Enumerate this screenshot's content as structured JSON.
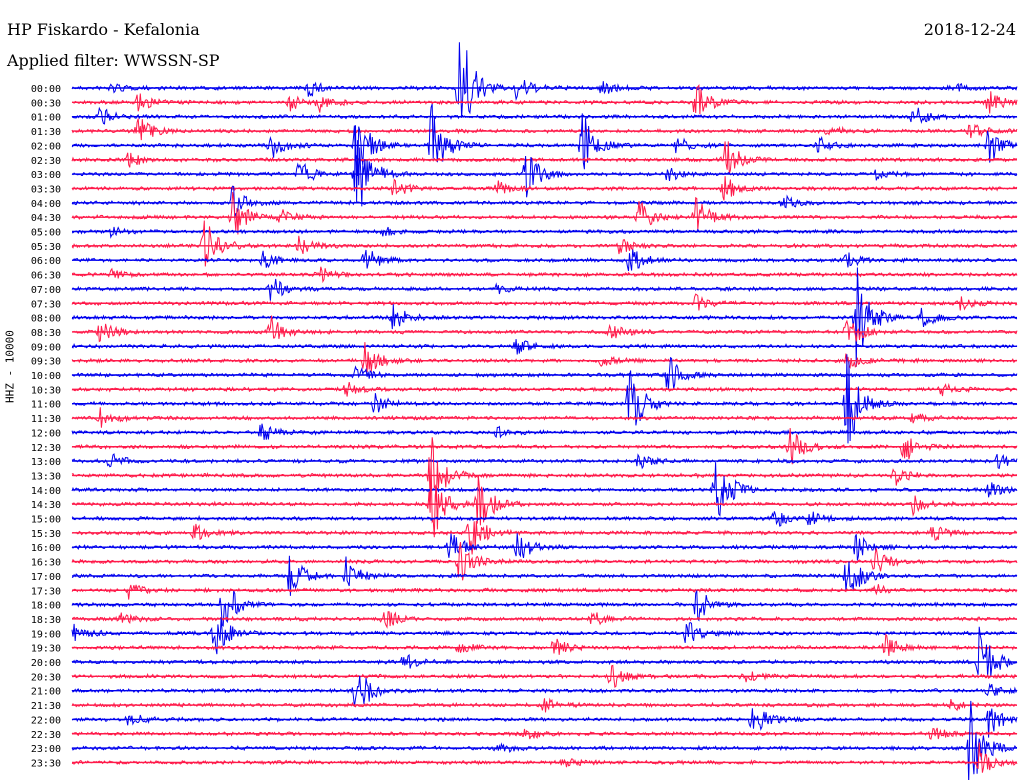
{
  "header": {
    "station": "HP Fiskardo - Kefalonia",
    "filter": "Applied filter: WWSSN-SP",
    "date": "2018-12-24"
  },
  "colors": {
    "even_row": "#0000ee",
    "odd_row": "#ff1a4a"
  },
  "chart_data": {
    "type": "line",
    "title": "HP Fiskardo - Kefalonia",
    "subtitle": "Applied filter: WWSSN-SP",
    "ylabel": "HHZ - 10000",
    "grid": false,
    "row_labels": [
      "00:00",
      "00:30",
      "01:00",
      "01:30",
      "02:00",
      "02:30",
      "03:00",
      "03:30",
      "04:00",
      "04:30",
      "05:00",
      "05:30",
      "06:00",
      "06:30",
      "07:00",
      "07:30",
      "08:00",
      "08:30",
      "09:00",
      "09:30",
      "10:00",
      "10:30",
      "11:00",
      "11:30",
      "12:00",
      "12:30",
      "13:00",
      "13:30",
      "14:00",
      "14:30",
      "15:00",
      "15:30",
      "16:00",
      "16:30",
      "17:00",
      "17:30",
      "18:00",
      "18:30",
      "19:00",
      "19:30",
      "20:00",
      "20:30",
      "21:00",
      "21:30",
      "22:00",
      "22:30",
      "23:00",
      "23:30"
    ],
    "events": [
      {
        "row": 0,
        "x": 0.04,
        "amp": 6
      },
      {
        "row": 0,
        "x": 0.25,
        "amp": 10
      },
      {
        "row": 0,
        "x": 0.41,
        "amp": 70
      },
      {
        "row": 0,
        "x": 0.47,
        "amp": 15
      },
      {
        "row": 0,
        "x": 0.56,
        "amp": 8
      },
      {
        "row": 0,
        "x": 0.93,
        "amp": 6
      },
      {
        "row": 1,
        "x": 0.07,
        "amp": 10
      },
      {
        "row": 1,
        "x": 0.23,
        "amp": 9
      },
      {
        "row": 1,
        "x": 0.26,
        "amp": 10
      },
      {
        "row": 1,
        "x": 0.66,
        "amp": 22
      },
      {
        "row": 1,
        "x": 0.97,
        "amp": 12
      },
      {
        "row": 2,
        "x": 0.03,
        "amp": 10
      },
      {
        "row": 2,
        "x": 0.89,
        "amp": 12
      },
      {
        "row": 3,
        "x": 0.07,
        "amp": 16
      },
      {
        "row": 3,
        "x": 0.8,
        "amp": 6
      },
      {
        "row": 3,
        "x": 0.95,
        "amp": 10
      },
      {
        "row": 4,
        "x": 0.21,
        "amp": 15
      },
      {
        "row": 4,
        "x": 0.3,
        "amp": 40
      },
      {
        "row": 4,
        "x": 0.38,
        "amp": 45
      },
      {
        "row": 4,
        "x": 0.54,
        "amp": 35
      },
      {
        "row": 4,
        "x": 0.64,
        "amp": 10
      },
      {
        "row": 4,
        "x": 0.79,
        "amp": 8
      },
      {
        "row": 4,
        "x": 0.97,
        "amp": 22
      },
      {
        "row": 5,
        "x": 0.06,
        "amp": 8
      },
      {
        "row": 5,
        "x": 0.69,
        "amp": 25
      },
      {
        "row": 6,
        "x": 0.24,
        "amp": 14
      },
      {
        "row": 6,
        "x": 0.3,
        "amp": 55
      },
      {
        "row": 6,
        "x": 0.48,
        "amp": 28
      },
      {
        "row": 6,
        "x": 0.63,
        "amp": 7
      },
      {
        "row": 6,
        "x": 0.85,
        "amp": 6
      },
      {
        "row": 7,
        "x": 0.34,
        "amp": 10
      },
      {
        "row": 7,
        "x": 0.45,
        "amp": 7
      },
      {
        "row": 7,
        "x": 0.69,
        "amp": 15
      },
      {
        "row": 8,
        "x": 0.17,
        "amp": 18
      },
      {
        "row": 8,
        "x": 0.75,
        "amp": 10
      },
      {
        "row": 9,
        "x": 0.17,
        "amp": 25
      },
      {
        "row": 9,
        "x": 0.22,
        "amp": 8
      },
      {
        "row": 9,
        "x": 0.6,
        "amp": 18
      },
      {
        "row": 9,
        "x": 0.66,
        "amp": 20
      },
      {
        "row": 10,
        "x": 0.04,
        "amp": 5
      },
      {
        "row": 10,
        "x": 0.33,
        "amp": 6
      },
      {
        "row": 11,
        "x": 0.14,
        "amp": 40
      },
      {
        "row": 11,
        "x": 0.24,
        "amp": 10
      },
      {
        "row": 11,
        "x": 0.58,
        "amp": 9
      },
      {
        "row": 12,
        "x": 0.2,
        "amp": 10
      },
      {
        "row": 12,
        "x": 0.31,
        "amp": 14
      },
      {
        "row": 12,
        "x": 0.59,
        "amp": 16
      },
      {
        "row": 12,
        "x": 0.82,
        "amp": 8
      },
      {
        "row": 13,
        "x": 0.04,
        "amp": 5
      },
      {
        "row": 13,
        "x": 0.26,
        "amp": 10
      },
      {
        "row": 14,
        "x": 0.21,
        "amp": 14
      },
      {
        "row": 14,
        "x": 0.45,
        "amp": 5
      },
      {
        "row": 15,
        "x": 0.66,
        "amp": 8
      },
      {
        "row": 15,
        "x": 0.94,
        "amp": 7
      },
      {
        "row": 16,
        "x": 0.34,
        "amp": 14
      },
      {
        "row": 16,
        "x": 0.83,
        "amp": 55
      },
      {
        "row": 16,
        "x": 0.9,
        "amp": 12
      },
      {
        "row": 17,
        "x": 0.03,
        "amp": 12
      },
      {
        "row": 17,
        "x": 0.21,
        "amp": 16
      },
      {
        "row": 17,
        "x": 0.57,
        "amp": 8
      },
      {
        "row": 17,
        "x": 0.82,
        "amp": 20
      },
      {
        "row": 18,
        "x": 0.47,
        "amp": 10
      },
      {
        "row": 19,
        "x": 0.31,
        "amp": 18
      },
      {
        "row": 19,
        "x": 0.56,
        "amp": 8
      },
      {
        "row": 19,
        "x": 0.82,
        "amp": 10
      },
      {
        "row": 20,
        "x": 0.3,
        "amp": 10
      },
      {
        "row": 20,
        "x": 0.63,
        "amp": 22
      },
      {
        "row": 21,
        "x": 0.29,
        "amp": 8
      },
      {
        "row": 21,
        "x": 0.92,
        "amp": 6
      },
      {
        "row": 22,
        "x": 0.32,
        "amp": 10
      },
      {
        "row": 22,
        "x": 0.59,
        "amp": 40
      },
      {
        "row": 22,
        "x": 0.82,
        "amp": 50
      },
      {
        "row": 23,
        "x": 0.03,
        "amp": 10
      },
      {
        "row": 23,
        "x": 0.89,
        "amp": 8
      },
      {
        "row": 24,
        "x": 0.2,
        "amp": 10
      },
      {
        "row": 24,
        "x": 0.45,
        "amp": 5
      },
      {
        "row": 25,
        "x": 0.76,
        "amp": 20
      },
      {
        "row": 25,
        "x": 0.88,
        "amp": 18
      },
      {
        "row": 26,
        "x": 0.04,
        "amp": 8
      },
      {
        "row": 26,
        "x": 0.6,
        "amp": 8
      },
      {
        "row": 26,
        "x": 0.98,
        "amp": 12
      },
      {
        "row": 27,
        "x": 0.38,
        "amp": 40
      },
      {
        "row": 27,
        "x": 0.87,
        "amp": 12
      },
      {
        "row": 28,
        "x": 0.68,
        "amp": 50
      },
      {
        "row": 28,
        "x": 0.97,
        "amp": 8
      },
      {
        "row": 29,
        "x": 0.38,
        "amp": 45
      },
      {
        "row": 29,
        "x": 0.43,
        "amp": 30
      },
      {
        "row": 29,
        "x": 0.89,
        "amp": 10
      },
      {
        "row": 30,
        "x": 0.74,
        "amp": 14
      },
      {
        "row": 30,
        "x": 0.78,
        "amp": 8
      },
      {
        "row": 31,
        "x": 0.13,
        "amp": 10
      },
      {
        "row": 31,
        "x": 0.42,
        "amp": 30
      },
      {
        "row": 31,
        "x": 0.91,
        "amp": 10
      },
      {
        "row": 32,
        "x": 0.4,
        "amp": 16
      },
      {
        "row": 32,
        "x": 0.47,
        "amp": 18
      },
      {
        "row": 32,
        "x": 0.83,
        "amp": 14
      },
      {
        "row": 33,
        "x": 0.41,
        "amp": 24
      },
      {
        "row": 33,
        "x": 0.85,
        "amp": 14
      },
      {
        "row": 34,
        "x": 0.23,
        "amp": 25
      },
      {
        "row": 34,
        "x": 0.29,
        "amp": 18
      },
      {
        "row": 34,
        "x": 0.82,
        "amp": 30
      },
      {
        "row": 35,
        "x": 0.06,
        "amp": 8
      },
      {
        "row": 35,
        "x": 0.85,
        "amp": 6
      },
      {
        "row": 36,
        "x": 0.16,
        "amp": 30
      },
      {
        "row": 36,
        "x": 0.66,
        "amp": 20
      },
      {
        "row": 37,
        "x": 0.05,
        "amp": 6
      },
      {
        "row": 37,
        "x": 0.33,
        "amp": 12
      },
      {
        "row": 37,
        "x": 0.55,
        "amp": 8
      },
      {
        "row": 38,
        "x": 0.0,
        "amp": 12
      },
      {
        "row": 38,
        "x": 0.15,
        "amp": 28
      },
      {
        "row": 38,
        "x": 0.65,
        "amp": 14
      },
      {
        "row": 39,
        "x": 0.41,
        "amp": 8
      },
      {
        "row": 39,
        "x": 0.51,
        "amp": 10
      },
      {
        "row": 39,
        "x": 0.86,
        "amp": 14
      },
      {
        "row": 40,
        "x": 0.35,
        "amp": 10
      },
      {
        "row": 40,
        "x": 0.96,
        "amp": 40
      },
      {
        "row": 41,
        "x": 0.57,
        "amp": 14
      },
      {
        "row": 41,
        "x": 0.71,
        "amp": 8
      },
      {
        "row": 42,
        "x": 0.3,
        "amp": 30
      },
      {
        "row": 42,
        "x": 0.97,
        "amp": 8
      },
      {
        "row": 43,
        "x": 0.5,
        "amp": 8
      },
      {
        "row": 43,
        "x": 0.93,
        "amp": 6
      },
      {
        "row": 44,
        "x": 0.06,
        "amp": 10
      },
      {
        "row": 44,
        "x": 0.72,
        "amp": 20
      },
      {
        "row": 44,
        "x": 0.97,
        "amp": 20
      },
      {
        "row": 45,
        "x": 0.48,
        "amp": 6
      },
      {
        "row": 45,
        "x": 0.91,
        "amp": 8
      },
      {
        "row": 46,
        "x": 0.45,
        "amp": 8
      },
      {
        "row": 46,
        "x": 0.95,
        "amp": 55
      },
      {
        "row": 47,
        "x": 0.52,
        "amp": 5
      },
      {
        "row": 47,
        "x": 0.96,
        "amp": 18
      }
    ]
  }
}
